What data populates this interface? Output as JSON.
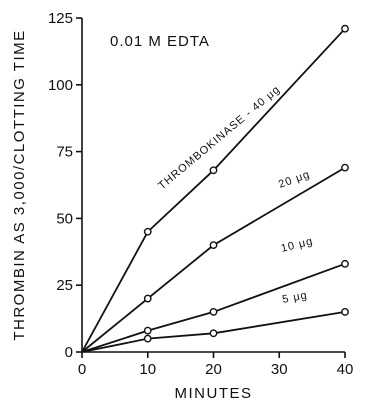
{
  "chart_data": {
    "type": "line",
    "title": "0.01 M EDTA",
    "xlabel": "MINUTES",
    "ylabel": "THROMBIN AS 3,000/CLOTTING TIME",
    "xlim": [
      0,
      40
    ],
    "ylim": [
      0,
      125
    ],
    "xticks": [
      0,
      10,
      20,
      30,
      40
    ],
    "yticks": [
      0,
      25,
      50,
      75,
      100,
      125
    ],
    "x": [
      0,
      10,
      20,
      40
    ],
    "series": [
      {
        "name": "THROMBOKINASE - 40 μg",
        "values": [
          0,
          45,
          68,
          121
        ]
      },
      {
        "name": "20 μg",
        "values": [
          0,
          20,
          40,
          69
        ]
      },
      {
        "name": "10 μg",
        "values": [
          0,
          8,
          15,
          33
        ]
      },
      {
        "name": "5 μg",
        "values": [
          0,
          5,
          7,
          15
        ]
      }
    ],
    "grid": false,
    "legend": "inline labels"
  }
}
